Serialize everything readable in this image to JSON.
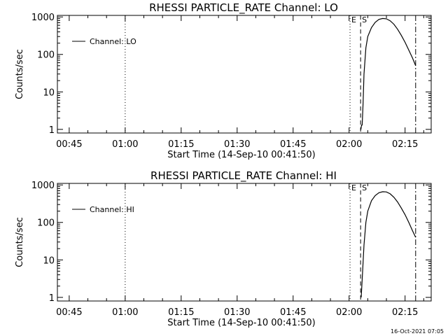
{
  "footer": {
    "timestamp": "16-Oct-2021 07:05"
  },
  "chart_data": [
    {
      "type": "line",
      "title": "RHESSI PARTICLE_RATE Channel: LO",
      "xlabel": "Start Time (14-Sep-10 00:41:50)",
      "ylabel": "Counts/sec",
      "y_scale": "log",
      "ylim": [
        0.8,
        1100
      ],
      "xlim": [
        "00:41:50",
        "02:22:00"
      ],
      "y_ticks": [
        1,
        10,
        100,
        1000
      ],
      "x_ticks": [
        "00:45",
        "01:00",
        "01:15",
        "01:30",
        "01:45",
        "02:00",
        "02:15"
      ],
      "legend": {
        "entries": [
          "Channel: LO"
        ],
        "position": "top-left"
      },
      "markers": [
        {
          "time": "01:00:00",
          "style": "dotted",
          "label": ""
        },
        {
          "time": "02:00:15",
          "style": "dotted",
          "label": "E"
        },
        {
          "time": "02:03:05",
          "style": "dashed",
          "label": "S"
        },
        {
          "time": "02:17:50",
          "style": "dashdot",
          "label": ""
        }
      ],
      "series": [
        {
          "name": "Channel: LO",
          "x": [
            "02:03:00",
            "02:03:10",
            "02:03:20",
            "02:03:30",
            "02:03:45",
            "02:04:00",
            "02:04:30",
            "02:05:00",
            "02:06:00",
            "02:07:00",
            "02:08:00",
            "02:09:00",
            "02:10:00",
            "02:11:00",
            "02:12:00",
            "02:13:00",
            "02:14:00",
            "02:15:00",
            "02:16:00",
            "02:17:00",
            "02:17:50"
          ],
          "y": [
            1,
            1,
            1.3,
            1.3,
            5,
            30,
            150,
            300,
            520,
            720,
            860,
            910,
            890,
            790,
            640,
            470,
            320,
            210,
            130,
            80,
            50
          ]
        }
      ]
    },
    {
      "type": "line",
      "title": "RHESSI PARTICLE_RATE Channel: HI",
      "xlabel": "Start Time (14-Sep-10 00:41:50)",
      "ylabel": "Counts/sec",
      "y_scale": "log",
      "ylim": [
        0.8,
        1100
      ],
      "xlim": [
        "00:41:50",
        "02:22:00"
      ],
      "y_ticks": [
        1,
        10,
        100,
        1000
      ],
      "x_ticks": [
        "00:45",
        "01:00",
        "01:15",
        "01:30",
        "01:45",
        "02:00",
        "02:15"
      ],
      "legend": {
        "entries": [
          "Channel: HI"
        ],
        "position": "top-left"
      },
      "markers": [
        {
          "time": "01:00:00",
          "style": "dotted",
          "label": ""
        },
        {
          "time": "02:00:15",
          "style": "dotted",
          "label": "E"
        },
        {
          "time": "02:03:05",
          "style": "dashed",
          "label": "S"
        },
        {
          "time": "02:17:50",
          "style": "dashdot",
          "label": ""
        }
      ],
      "series": [
        {
          "name": "Channel: HI",
          "x": [
            "02:03:15",
            "02:03:30",
            "02:04:00",
            "02:04:30",
            "02:05:00",
            "02:06:00",
            "02:07:00",
            "02:08:00",
            "02:09:00",
            "02:10:00",
            "02:11:00",
            "02:12:00",
            "02:13:00",
            "02:14:00",
            "02:15:00",
            "02:16:00",
            "02:17:00",
            "02:17:50"
          ],
          "y": [
            1,
            3,
            25,
            100,
            200,
            380,
            520,
            620,
            660,
            650,
            580,
            470,
            350,
            240,
            160,
            100,
            60,
            40
          ]
        }
      ]
    }
  ]
}
